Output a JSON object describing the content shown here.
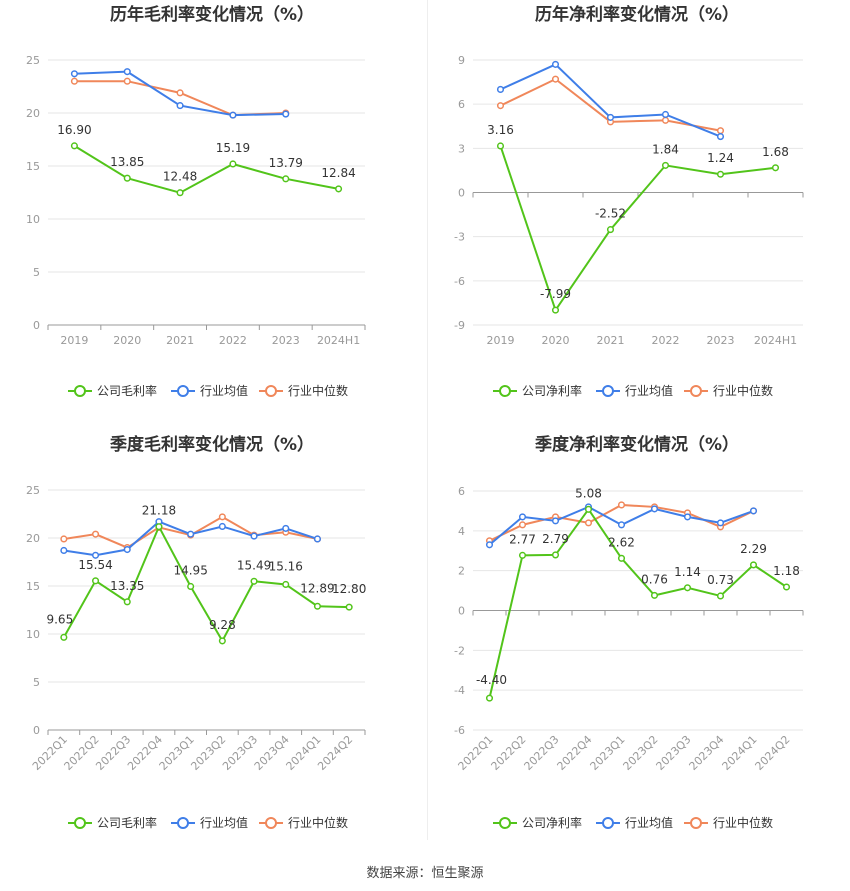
{
  "source_note": "数据来源：恒生聚源",
  "colors": {
    "company": "#52c41a",
    "industry_avg": "#3f7ee8",
    "industry_median": "#f0875a",
    "grid": "#e6e6e6",
    "axis": "#999999",
    "label": "#333333"
  },
  "chart_data": [
    {
      "type": "line",
      "title": "历年毛利率变化情况（%）",
      "categories": [
        "2019",
        "2020",
        "2021",
        "2022",
        "2023",
        "2024H1"
      ],
      "ylim": [
        0,
        25
      ],
      "yticks": [
        0,
        5,
        10,
        15,
        20,
        25
      ],
      "rotate_xlabels": false,
      "series": [
        {
          "name": "公司毛利率",
          "color": "#52c41a",
          "labels": true,
          "values": [
            16.9,
            13.85,
            12.48,
            15.19,
            13.79,
            12.84
          ]
        },
        {
          "name": "行业均值",
          "color": "#3f7ee8",
          "labels": false,
          "values": [
            23.7,
            23.9,
            20.7,
            19.8,
            19.9,
            null
          ]
        },
        {
          "name": "行业中位数",
          "color": "#f0875a",
          "labels": false,
          "values": [
            23.0,
            23.0,
            21.9,
            19.8,
            20.0,
            null
          ]
        }
      ]
    },
    {
      "type": "line",
      "title": "历年净利率变化情况（%）",
      "categories": [
        "2019",
        "2020",
        "2021",
        "2022",
        "2023",
        "2024H1"
      ],
      "ylim": [
        -9,
        9
      ],
      "yticks": [
        -9,
        -6,
        -3,
        0,
        3,
        6,
        9
      ],
      "rotate_xlabels": false,
      "series": [
        {
          "name": "公司净利率",
          "color": "#52c41a",
          "labels": true,
          "values": [
            3.16,
            -7.99,
            -2.52,
            1.84,
            1.24,
            1.68
          ]
        },
        {
          "name": "行业均值",
          "color": "#3f7ee8",
          "labels": false,
          "values": [
            7.0,
            8.7,
            5.1,
            5.3,
            3.8,
            null
          ]
        },
        {
          "name": "行业中位数",
          "color": "#f0875a",
          "labels": false,
          "values": [
            5.9,
            7.7,
            4.8,
            4.9,
            4.2,
            null
          ]
        }
      ]
    },
    {
      "type": "line",
      "title": "季度毛利率变化情况（%）",
      "categories": [
        "2022Q1",
        "2022Q2",
        "2022Q3",
        "2022Q4",
        "2023Q1",
        "2023Q2",
        "2023Q3",
        "2023Q4",
        "2024Q1",
        "2024Q2"
      ],
      "ylim": [
        0,
        25
      ],
      "yticks": [
        0,
        5,
        10,
        15,
        20,
        25
      ],
      "rotate_xlabels": true,
      "series": [
        {
          "name": "公司毛利率",
          "color": "#52c41a",
          "labels": true,
          "values": [
            9.65,
            15.54,
            13.35,
            21.18,
            14.95,
            9.28,
            15.49,
            15.16,
            12.89,
            12.8
          ]
        },
        {
          "name": "行业均值",
          "color": "#3f7ee8",
          "labels": false,
          "values": [
            18.7,
            18.2,
            18.8,
            21.7,
            20.4,
            21.2,
            20.2,
            21.0,
            19.9,
            null
          ]
        },
        {
          "name": "行业中位数",
          "color": "#f0875a",
          "labels": false,
          "values": [
            19.9,
            20.4,
            19.0,
            21.1,
            20.3,
            22.2,
            20.3,
            20.6,
            19.9,
            null
          ]
        }
      ]
    },
    {
      "type": "line",
      "title": "季度净利率变化情况（%）",
      "categories": [
        "2022Q1",
        "2022Q2",
        "2022Q3",
        "2022Q4",
        "2023Q1",
        "2023Q2",
        "2023Q3",
        "2023Q4",
        "2024Q1",
        "2024Q2"
      ],
      "ylim": [
        -6,
        6
      ],
      "yticks": [
        -6,
        -4,
        -2,
        0,
        2,
        4,
        6
      ],
      "rotate_xlabels": true,
      "series": [
        {
          "name": "公司净利率",
          "color": "#52c41a",
          "labels": true,
          "values": [
            -4.4,
            2.77,
            2.79,
            5.08,
            2.62,
            0.76,
            1.14,
            0.73,
            2.29,
            1.18
          ]
        },
        {
          "name": "行业均值",
          "color": "#3f7ee8",
          "labels": false,
          "values": [
            3.3,
            4.7,
            4.5,
            5.2,
            4.3,
            5.1,
            4.7,
            4.4,
            5.0,
            null
          ]
        },
        {
          "name": "行业中位数",
          "color": "#f0875a",
          "labels": false,
          "values": [
            3.5,
            4.3,
            4.7,
            4.4,
            5.3,
            5.2,
            4.9,
            4.2,
            5.0,
            null
          ]
        }
      ]
    }
  ]
}
